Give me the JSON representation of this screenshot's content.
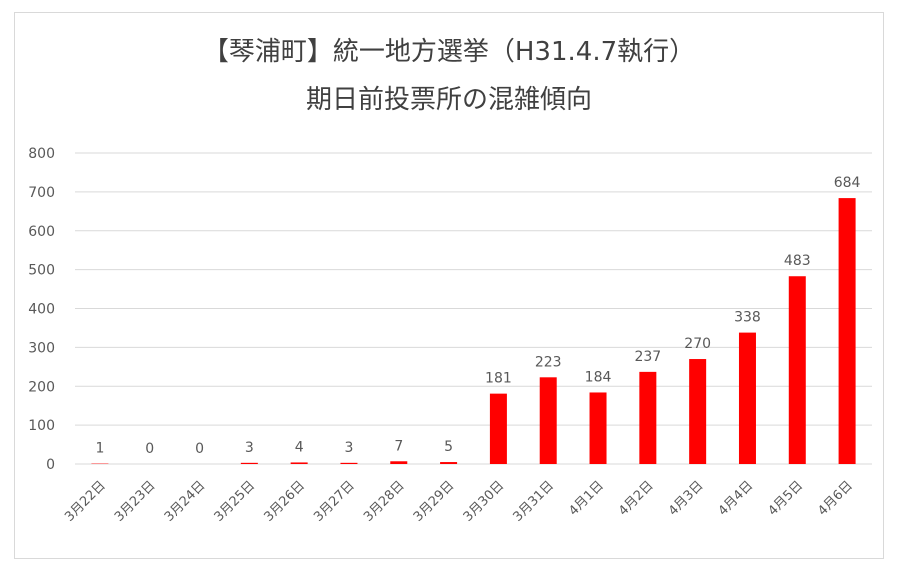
{
  "chart_data": {
    "type": "bar",
    "title_line1": "【琴浦町】統一地方選挙（H31.4.7執行）",
    "title_line2": "期日前投票所の混雑傾向",
    "categories": [
      "3月22日",
      "3月23日",
      "3月24日",
      "3月25日",
      "3月26日",
      "3月27日",
      "3月28日",
      "3月29日",
      "3月30日",
      "3月31日",
      "4月1日",
      "4月2日",
      "4月3日",
      "4月4日",
      "4月5日",
      "4月6日"
    ],
    "values": [
      1,
      0,
      0,
      3,
      4,
      3,
      7,
      5,
      181,
      223,
      184,
      237,
      270,
      338,
      483,
      684
    ],
    "data_labels": [
      "1",
      "0",
      "0",
      "3",
      "4",
      "3",
      "7",
      "5",
      "181",
      "223",
      "184",
      "237",
      "270",
      "338",
      "483",
      "684"
    ],
    "yticks": [
      0,
      100,
      200,
      300,
      400,
      500,
      600,
      700,
      800
    ],
    "ytick_labels": [
      "0",
      "100",
      "200",
      "300",
      "400",
      "500",
      "600",
      "700",
      "800"
    ],
    "ylim": [
      0,
      800
    ],
    "grid": true,
    "legend": "none",
    "bar_color": "#ff0000",
    "grid_color": "#d9d9d9"
  }
}
